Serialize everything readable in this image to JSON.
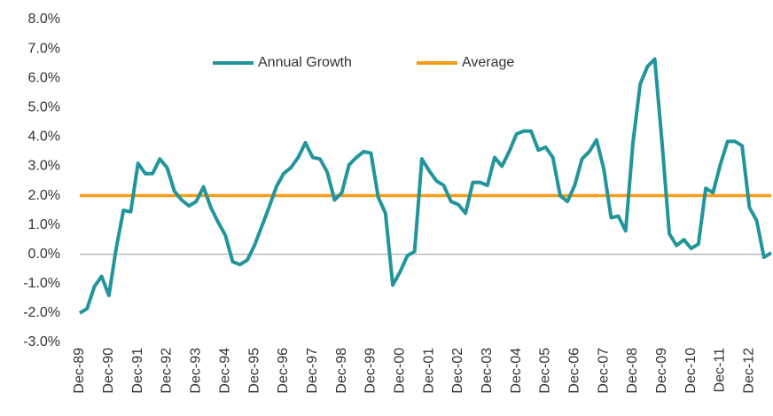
{
  "chart_data": {
    "type": "line",
    "categories": [
      "Dec-89",
      null,
      null,
      null,
      "Dec-90",
      null,
      null,
      null,
      "Dec-91",
      null,
      null,
      null,
      "Dec-92",
      null,
      null,
      null,
      "Dec-93",
      null,
      null,
      null,
      "Dec-94",
      null,
      null,
      null,
      "Dec-95",
      null,
      null,
      null,
      "Dec-96",
      null,
      null,
      null,
      "Dec-97",
      null,
      null,
      null,
      "Dec-98",
      null,
      null,
      null,
      "Dec-99",
      null,
      null,
      null,
      "Dec-00",
      null,
      null,
      null,
      "Dec-01",
      null,
      null,
      null,
      "Dec-02",
      null,
      null,
      null,
      "Dec-03",
      null,
      null,
      null,
      "Dec-04",
      null,
      null,
      null,
      "Dec-05",
      null,
      null,
      null,
      "Dec-06",
      null,
      null,
      null,
      "Dec-07",
      null,
      null,
      null,
      "Dec-08",
      null,
      null,
      null,
      "Dec-09",
      null,
      null,
      null,
      "Dec-10",
      null,
      null,
      null,
      "Dec-11",
      null,
      null,
      null,
      "Dec-12",
      null,
      null,
      null
    ],
    "series": [
      {
        "name": "Annual Growth",
        "color": "#22959c",
        "values": [
          -2.0,
          -1.85,
          -1.1,
          -0.75,
          -1.4,
          0.2,
          1.5,
          1.45,
          3.1,
          2.75,
          2.75,
          3.25,
          2.95,
          2.15,
          1.85,
          1.65,
          1.8,
          2.3,
          1.6,
          1.1,
          0.65,
          -0.25,
          -0.35,
          -0.2,
          0.3,
          0.95,
          1.6,
          2.3,
          2.75,
          2.95,
          3.3,
          3.8,
          3.3,
          3.25,
          2.8,
          1.85,
          2.1,
          3.05,
          3.3,
          3.5,
          3.45,
          1.95,
          1.4,
          -1.05,
          -0.6,
          -0.05,
          0.1,
          3.25,
          2.85,
          2.5,
          2.35,
          1.8,
          1.7,
          1.4,
          2.45,
          2.45,
          2.35,
          3.3,
          3.0,
          3.5,
          4.1,
          4.2,
          4.2,
          3.55,
          3.65,
          3.3,
          2.0,
          1.8,
          2.35,
          3.25,
          3.5,
          3.9,
          2.9,
          1.25,
          1.3,
          0.8,
          3.8,
          5.8,
          6.4,
          6.65,
          3.8,
          0.7,
          0.3,
          0.5,
          0.2,
          0.35,
          2.25,
          2.1,
          3.05,
          3.85,
          3.85,
          3.7,
          1.6,
          1.15,
          -0.1,
          0.05
        ]
      },
      {
        "name": "Average",
        "color": "#f59d1a",
        "values": [
          2,
          2,
          2,
          2,
          2,
          2,
          2,
          2,
          2,
          2,
          2,
          2,
          2,
          2,
          2,
          2,
          2,
          2,
          2,
          2,
          2,
          2,
          2,
          2,
          2,
          2,
          2,
          2,
          2,
          2,
          2,
          2,
          2,
          2,
          2,
          2,
          2,
          2,
          2,
          2,
          2,
          2,
          2,
          2,
          2,
          2,
          2,
          2,
          2,
          2,
          2,
          2,
          2,
          2,
          2,
          2,
          2,
          2,
          2,
          2,
          2,
          2,
          2,
          2,
          2,
          2,
          2,
          2,
          2,
          2,
          2,
          2,
          2,
          2,
          2,
          2,
          2,
          2,
          2,
          2,
          2,
          2,
          2,
          2,
          2,
          2,
          2,
          2,
          2,
          2,
          2,
          2,
          2,
          2,
          2,
          2
        ]
      }
    ],
    "ylim": [
      -3,
      8
    ],
    "yticks": [
      {
        "value": -3,
        "label": "-3.0%"
      },
      {
        "value": -2,
        "label": "-2.0%"
      },
      {
        "value": -1,
        "label": "-1.0%"
      },
      {
        "value": 0,
        "label": "0.0%"
      },
      {
        "value": 1,
        "label": "1.0%"
      },
      {
        "value": 2,
        "label": "2.0%"
      },
      {
        "value": 3,
        "label": "3.0%"
      },
      {
        "value": 4,
        "label": "4.0%"
      },
      {
        "value": 5,
        "label": "5.0%"
      },
      {
        "value": 6,
        "label": "6.0%"
      },
      {
        "value": 7,
        "label": "7.0%"
      },
      {
        "value": 8,
        "label": "8.0%"
      }
    ],
    "legend": "top"
  }
}
